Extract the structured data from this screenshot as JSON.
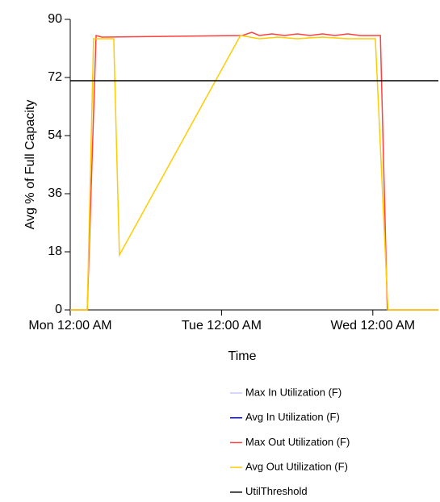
{
  "chart_data": {
    "type": "line",
    "y_label": "Avg % of Full Capacity",
    "x_label": "Time",
    "xlim": [
      0,
      58.4
    ],
    "xticks": [
      {
        "value": 0,
        "label": "Mon 12:00 AM"
      },
      {
        "value": 24,
        "label": "Tue 12:00 AM"
      },
      {
        "value": 48,
        "label": "Wed 12:00 AM"
      }
    ],
    "ylim": [
      0,
      90
    ],
    "yticks": [
      0,
      18,
      36,
      54,
      72,
      90
    ],
    "legend": "bottom",
    "series": [
      {
        "name": "Max In Utilization (F)",
        "color": "#c8c8ff",
        "x": [
          0,
          58.4
        ],
        "values": [
          null,
          null
        ]
      },
      {
        "name": "Avg In Utilization (F)",
        "color": "#0000ff",
        "x": [
          0,
          58.4
        ],
        "values": [
          null,
          null
        ]
      },
      {
        "name": "Max Out Utilization (F)",
        "color": "#ff4040",
        "x": [
          0,
          2.7,
          4.1,
          5,
          27.3,
          28.8,
          30,
          32,
          34,
          36,
          38,
          40,
          42,
          44,
          46,
          49.2,
          50.3,
          58.4
        ],
        "values": [
          0,
          0,
          85,
          84.5,
          85,
          86,
          85,
          85.5,
          85,
          85.5,
          85,
          85.5,
          85,
          85.5,
          85,
          85,
          0,
          0
        ]
      },
      {
        "name": "Avg Out Utilization (F)",
        "color": "#ffcc00",
        "x": [
          0,
          2.7,
          3.7,
          6.9,
          7.8,
          27,
          30,
          33,
          36,
          40,
          44,
          48.4,
          50.4,
          58.4
        ],
        "values": [
          0,
          0,
          84,
          84,
          17,
          85,
          84,
          84.5,
          84,
          84.5,
          84,
          84,
          0,
          0
        ]
      },
      {
        "name": "UtilThreshold",
        "color": "#000000",
        "x": [
          0,
          58.4
        ],
        "values": [
          71,
          71
        ]
      }
    ]
  }
}
